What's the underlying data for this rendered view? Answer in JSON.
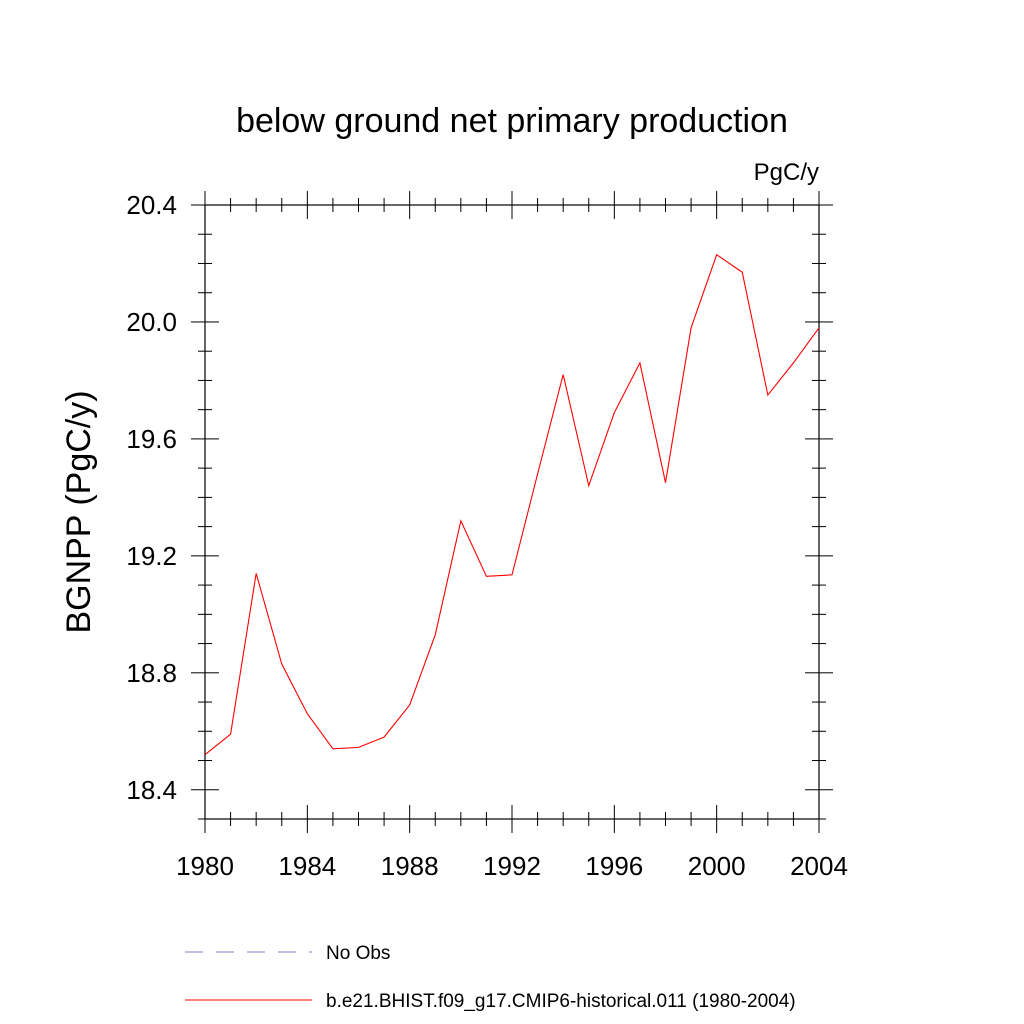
{
  "chart_data": {
    "type": "line",
    "title": "below ground net primary production",
    "units": "PgC/y",
    "ylabel": "BGNPP  (PgC/y)",
    "xlabel": "",
    "xlim": [
      1980,
      2004
    ],
    "ylim": [
      18.3,
      20.4
    ],
    "x_ticks": [
      1980,
      1984,
      1988,
      1992,
      1996,
      2000,
      2004
    ],
    "x_tick_labels": [
      "1980",
      "1984",
      "1988",
      "1992",
      "1996",
      "2000",
      "2004"
    ],
    "y_ticks": [
      18.4,
      18.8,
      19.2,
      19.6,
      20.0,
      20.4
    ],
    "y_tick_labels": [
      "18.4",
      "18.8",
      "19.2",
      "19.6",
      "20.0",
      "20.4"
    ],
    "grid": false,
    "legend_position": "bottom",
    "series": [
      {
        "name": "b.e21.BHIST.f09_g17.CMIP6-historical.011 (1980-2004)",
        "color": "#ff0000",
        "style": "solid",
        "x": [
          1980,
          1981,
          1982,
          1983,
          1984,
          1985,
          1986,
          1987,
          1988,
          1989,
          1990,
          1991,
          1992,
          1993,
          1994,
          1995,
          1996,
          1997,
          1998,
          1999,
          2000,
          2001,
          2002,
          2003,
          2004
        ],
        "values": [
          18.52,
          18.59,
          19.14,
          18.83,
          18.66,
          18.54,
          18.545,
          18.58,
          18.69,
          18.93,
          19.32,
          19.13,
          19.135,
          19.48,
          19.82,
          19.44,
          19.69,
          19.86,
          19.45,
          19.98,
          20.23,
          20.17,
          19.75,
          19.86,
          19.98
        ]
      }
    ],
    "legend": [
      {
        "label": "No Obs",
        "color": "#8080c0",
        "style": "dashed"
      },
      {
        "label": "b.e21.BHIST.f09_g17.CMIP6-historical.011 (1980-2004)",
        "color": "#ff0000",
        "style": "solid"
      }
    ]
  }
}
